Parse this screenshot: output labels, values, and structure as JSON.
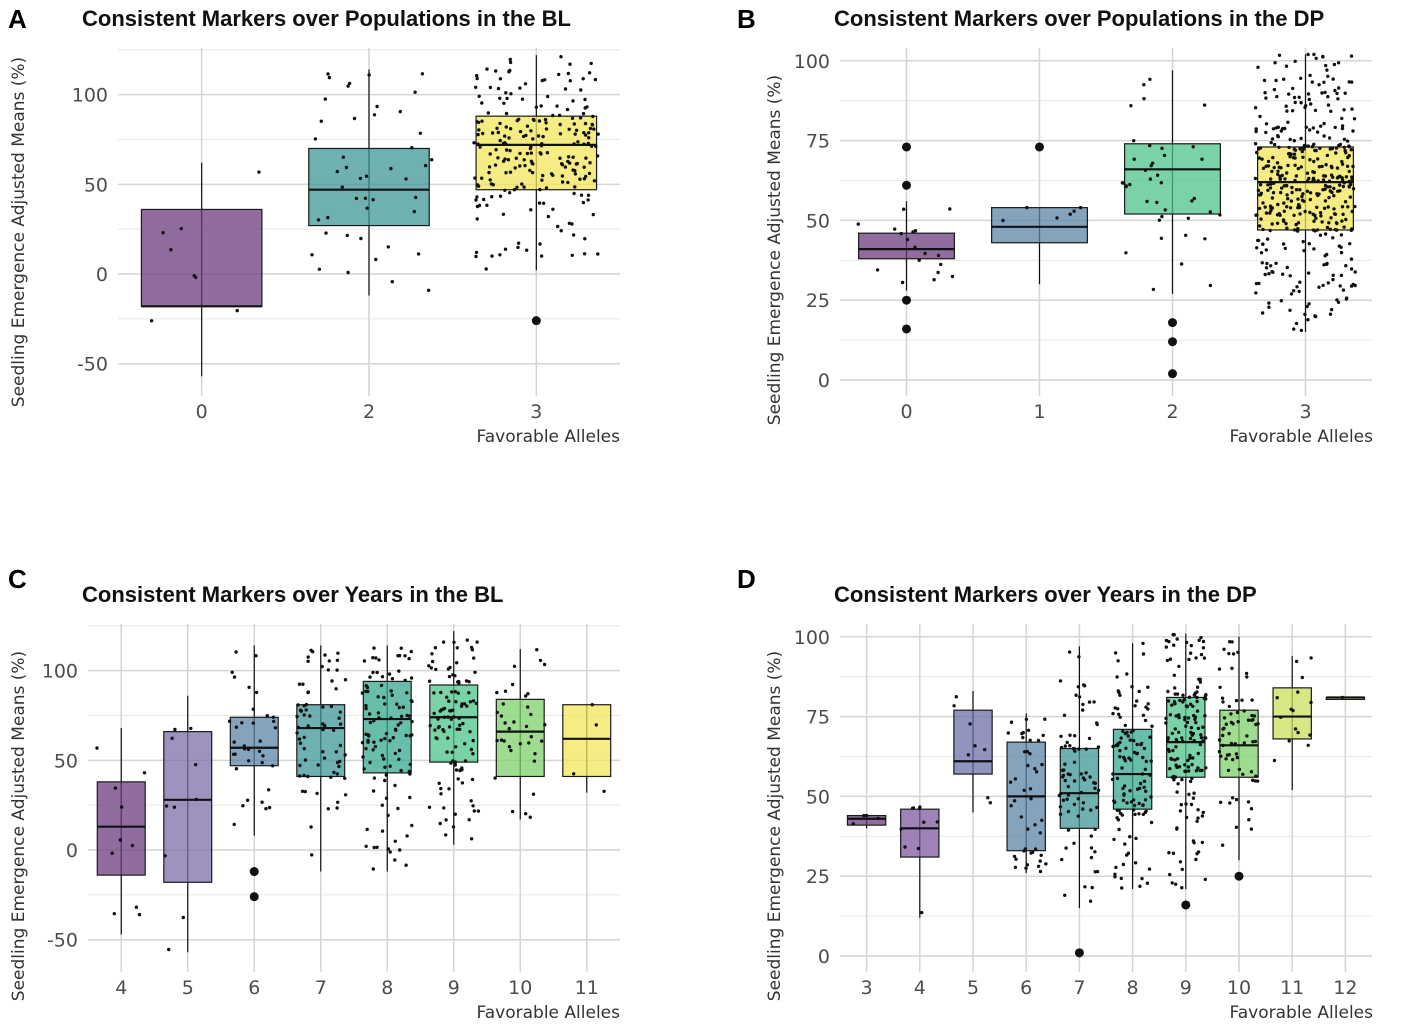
{
  "chart_data": [
    {
      "panel": "A",
      "type": "boxplot",
      "title": "Consistent Markers over Populations in the BL",
      "xlabel": "Favorable Alleles",
      "ylabel": "Seedling Emergence Adjusted Means (%)",
      "ylim": [
        -68,
        126
      ],
      "yticks": [
        -50,
        0,
        50,
        100
      ],
      "categories": [
        "0",
        "2",
        "3"
      ],
      "boxes": [
        {
          "q1": -18,
          "median": -18,
          "q3": 36,
          "lo": -57,
          "hi": 62,
          "outliers": [],
          "color": "#6b3c7d",
          "n": 8,
          "seed": 11
        },
        {
          "q1": 27,
          "median": 47,
          "q3": 70,
          "lo": -12,
          "hi": 114,
          "outliers": [],
          "color": "#3f9695",
          "n": 45,
          "seed": 23
        },
        {
          "q1": 47,
          "median": 72,
          "q3": 88,
          "lo": 2,
          "hi": 122,
          "outliers": [
            -26
          ],
          "color": "#f2e55a",
          "n": 230,
          "seed": 37
        }
      ]
    },
    {
      "panel": "B",
      "type": "boxplot",
      "title": "Consistent Markers over Populations in the DP",
      "xlabel": "Favorable Alleles",
      "ylabel": "Seedling Emergence Adjusted Means (%)",
      "ylim": [
        -5,
        104
      ],
      "yticks": [
        0,
        25,
        50,
        75,
        100
      ],
      "categories": [
        "0",
        "1",
        "2",
        "3"
      ],
      "boxes": [
        {
          "q1": 38,
          "median": 41,
          "q3": 46,
          "lo": 28,
          "hi": 56,
          "outliers": [
            73,
            61,
            25,
            16
          ],
          "color": "#6b3c7d",
          "n": 18,
          "seed": 5
        },
        {
          "q1": 43,
          "median": 48,
          "q3": 54,
          "lo": 30,
          "hi": 54,
          "outliers": [
            73
          ],
          "color": "#5b86a8",
          "n": 6,
          "seed": 9
        },
        {
          "q1": 52,
          "median": 66,
          "q3": 74,
          "lo": 27,
          "hi": 97,
          "outliers": [
            18,
            12,
            2
          ],
          "color": "#4cc48a",
          "n": 40,
          "seed": 17
        },
        {
          "q1": 47,
          "median": 62,
          "q3": 73,
          "lo": 15,
          "hi": 102,
          "outliers": [],
          "color": "#f2e55a",
          "n": 420,
          "seed": 29
        }
      ]
    },
    {
      "panel": "C",
      "type": "boxplot",
      "title": "Consistent Markers over Years in the BL",
      "xlabel": "Favorable Alleles",
      "ylabel": "Seedling Emergence Adjusted Means (%)",
      "ylim": [
        -68,
        126
      ],
      "yticks": [
        -50,
        0,
        50,
        100
      ],
      "categories": [
        "4",
        "5",
        "6",
        "7",
        "8",
        "9",
        "10",
        "11"
      ],
      "boxes": [
        {
          "q1": -14,
          "median": 13,
          "q3": 38,
          "lo": -47,
          "hi": 68,
          "outliers": [],
          "color": "#6b3c7d",
          "n": 10,
          "seed": 3
        },
        {
          "q1": -18,
          "median": 28,
          "q3": 66,
          "lo": -57,
          "hi": 86,
          "outliers": [],
          "color": "#7e6ea8",
          "n": 10,
          "seed": 7
        },
        {
          "q1": 47,
          "median": 57,
          "q3": 74,
          "lo": 8,
          "hi": 114,
          "outliers": [
            -12,
            -26
          ],
          "color": "#5b86a8",
          "n": 35,
          "seed": 13
        },
        {
          "q1": 41,
          "median": 68,
          "q3": 81,
          "lo": -12,
          "hi": 114,
          "outliers": [],
          "color": "#3f9695",
          "n": 70,
          "seed": 19
        },
        {
          "q1": 43,
          "median": 73,
          "q3": 94,
          "lo": -12,
          "hi": 114,
          "outliers": [],
          "color": "#36a88d",
          "n": 110,
          "seed": 31
        },
        {
          "q1": 49,
          "median": 74,
          "q3": 92,
          "lo": 3,
          "hi": 122,
          "outliers": [],
          "color": "#4cc48a",
          "n": 110,
          "seed": 41
        },
        {
          "q1": 41,
          "median": 66,
          "q3": 84,
          "lo": 17,
          "hi": 112,
          "outliers": [],
          "color": "#7ed26b",
          "n": 35,
          "seed": 43
        },
        {
          "q1": 41,
          "median": 62,
          "q3": 81,
          "lo": 32,
          "hi": 81,
          "outliers": [],
          "color": "#f2e55a",
          "n": 4,
          "seed": 47
        }
      ]
    },
    {
      "panel": "D",
      "type": "boxplot",
      "title": "Consistent Markers over Years in the DP",
      "xlabel": "Favorable Alleles",
      "ylabel": "Seedling Emergence Adjusted Means (%)",
      "ylim": [
        -5,
        104
      ],
      "yticks": [
        0,
        25,
        50,
        75,
        100
      ],
      "categories": [
        "3",
        "4",
        "5",
        "6",
        "7",
        "8",
        "9",
        "10",
        "11",
        "12"
      ],
      "boxes": [
        {
          "q1": 41,
          "median": 43,
          "q3": 44,
          "lo": 40,
          "hi": 44,
          "outliers": [],
          "color": "#6b3c7d",
          "n": 4,
          "seed": 2
        },
        {
          "q1": 31,
          "median": 40,
          "q3": 46,
          "lo": 12,
          "hi": 47,
          "outliers": [],
          "color": "#7e5aa0",
          "n": 10,
          "seed": 4
        },
        {
          "q1": 57,
          "median": 61,
          "q3": 77,
          "lo": 45,
          "hi": 83,
          "outliers": [],
          "color": "#6b70a8",
          "n": 8,
          "seed": 6
        },
        {
          "q1": 33,
          "median": 50,
          "q3": 67,
          "lo": 26,
          "hi": 76,
          "outliers": [],
          "color": "#5b86a8",
          "n": 45,
          "seed": 8
        },
        {
          "q1": 40,
          "median": 51,
          "q3": 65,
          "lo": 15,
          "hi": 97,
          "outliers": [
            1
          ],
          "color": "#3f9695",
          "n": 80,
          "seed": 10
        },
        {
          "q1": 46,
          "median": 57,
          "q3": 71,
          "lo": 21,
          "hi": 98,
          "outliers": [],
          "color": "#36a88d",
          "n": 120,
          "seed": 12
        },
        {
          "q1": 56,
          "median": 67,
          "q3": 81,
          "lo": 21,
          "hi": 101,
          "outliers": [
            16
          ],
          "color": "#4cc48a",
          "n": 160,
          "seed": 14
        },
        {
          "q1": 56,
          "median": 66,
          "q3": 77,
          "lo": 30,
          "hi": 100,
          "outliers": [
            25
          ],
          "color": "#7ed26b",
          "n": 70,
          "seed": 16
        },
        {
          "q1": 68,
          "median": 75,
          "q3": 84,
          "lo": 52,
          "hi": 94,
          "outliers": [],
          "color": "#c8e05a",
          "n": 15,
          "seed": 18
        },
        {
          "q1": 81,
          "median": 81,
          "q3": 81,
          "lo": 81,
          "hi": 81,
          "outliers": [],
          "color": "#f2e55a",
          "n": 1,
          "seed": 20
        }
      ]
    }
  ]
}
